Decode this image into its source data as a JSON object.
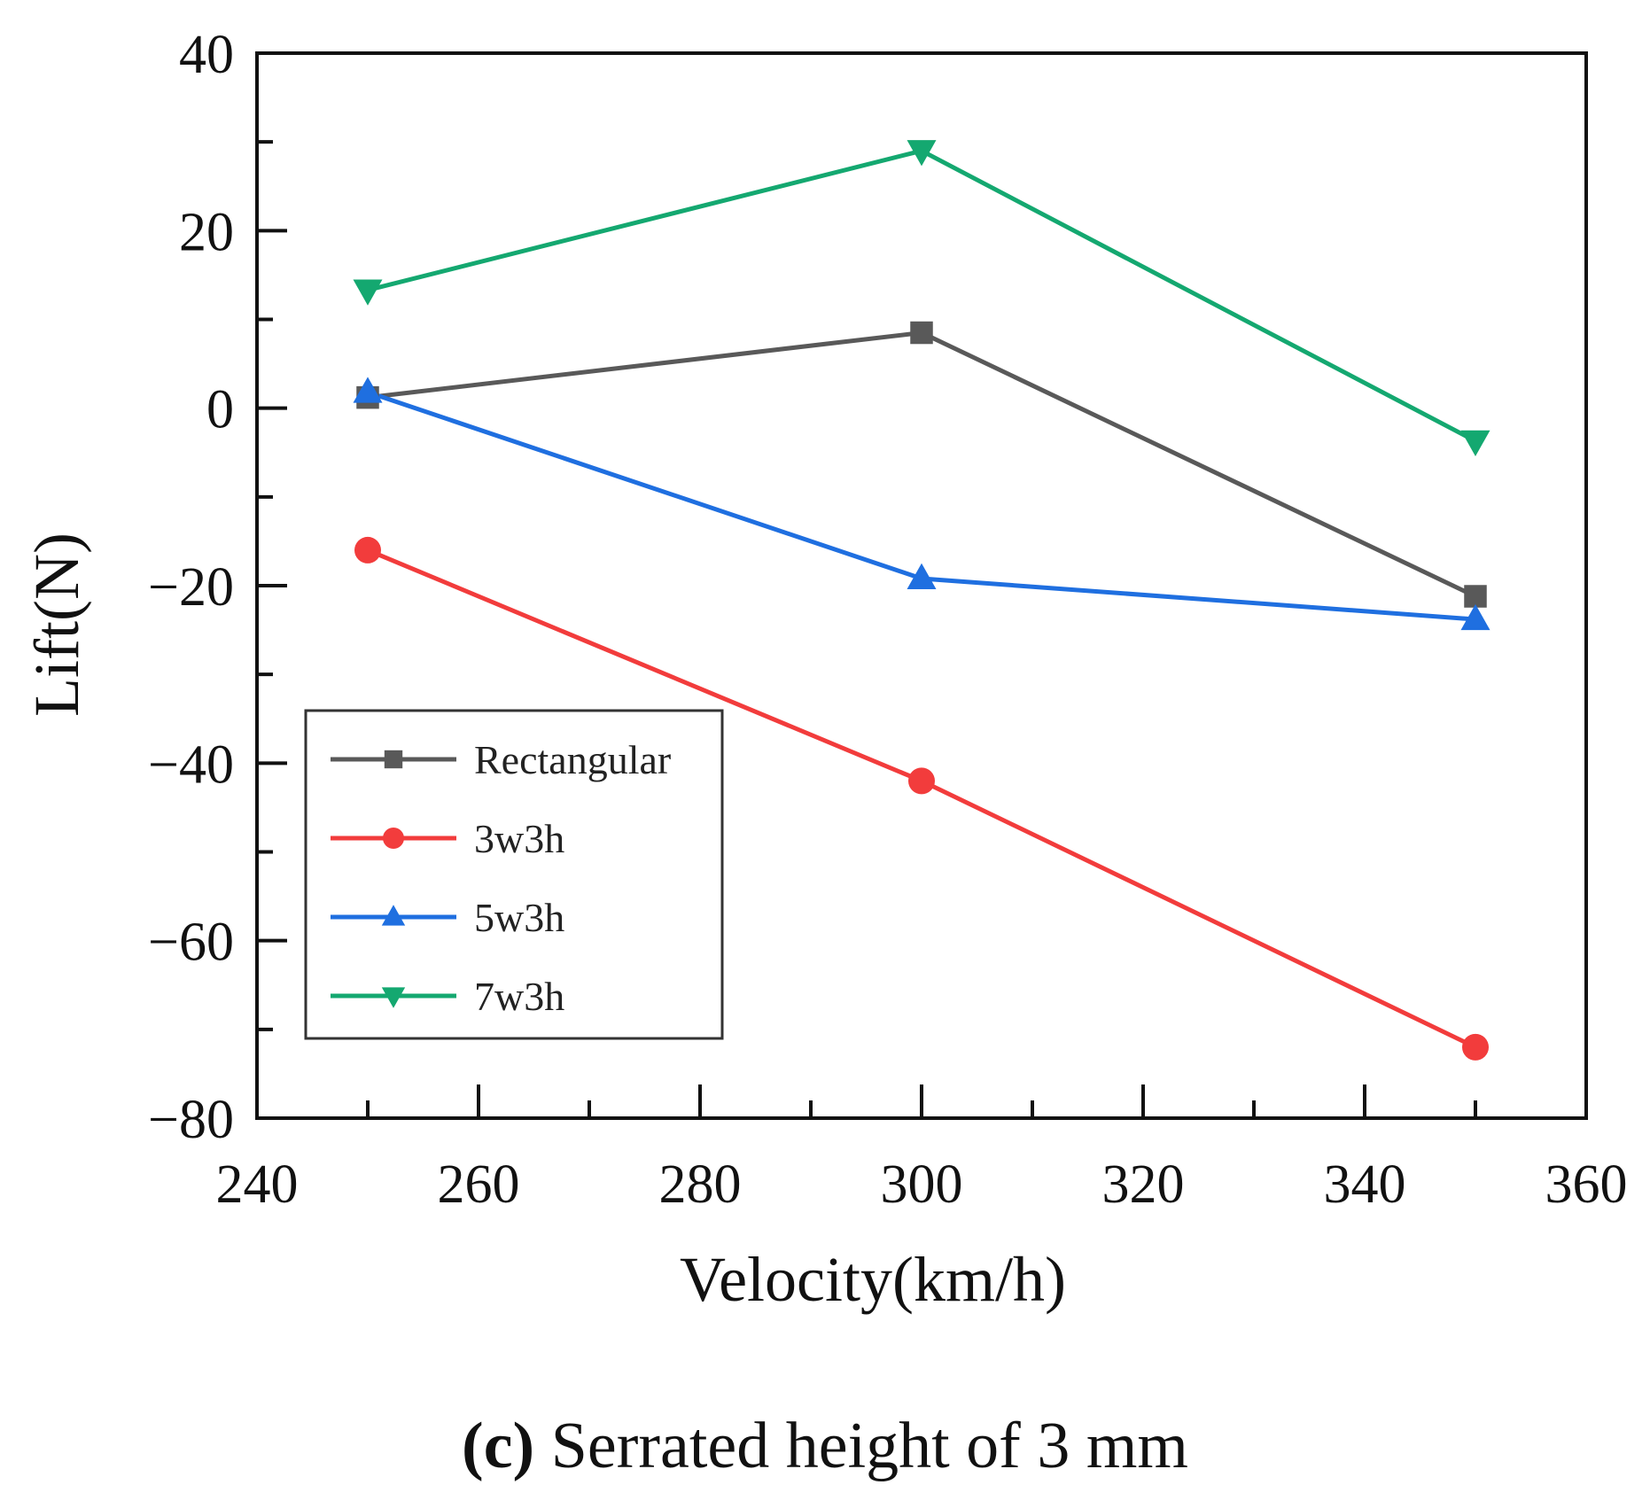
{
  "chart_data": {
    "type": "line",
    "title": "",
    "xlabel": "Velocity(km/h)",
    "ylabel": "Lift(N)",
    "xlim": [
      240,
      360
    ],
    "ylim": [
      -80,
      40
    ],
    "xticks": [
      240,
      260,
      280,
      300,
      320,
      340,
      360
    ],
    "yticks": [
      40,
      20,
      0,
      -20,
      -40,
      -60,
      -80
    ],
    "ytick_labels": [
      "40",
      "20",
      "0",
      "−20",
      "−40",
      "−60",
      "−80"
    ],
    "x": [
      250,
      300,
      350
    ],
    "legend_position": "lower-left",
    "series": [
      {
        "name": "Rectangular",
        "color": "#595959",
        "marker": "square",
        "values": [
          1.2,
          8.5,
          -21.2
        ]
      },
      {
        "name": "3w3h",
        "color": "#f23c3c",
        "marker": "circle",
        "values": [
          -16,
          -42,
          -72
        ]
      },
      {
        "name": "5w3h",
        "color": "#1f6fe0",
        "marker": "triangle-up",
        "values": [
          1.8,
          -19.2,
          -23.8
        ]
      },
      {
        "name": "7w3h",
        "color": "#14a870",
        "marker": "triangle-down",
        "values": [
          13.3,
          29,
          -3.7
        ]
      }
    ]
  },
  "caption": {
    "label": "(c)",
    "text": " Serrated height of 3 mm"
  }
}
